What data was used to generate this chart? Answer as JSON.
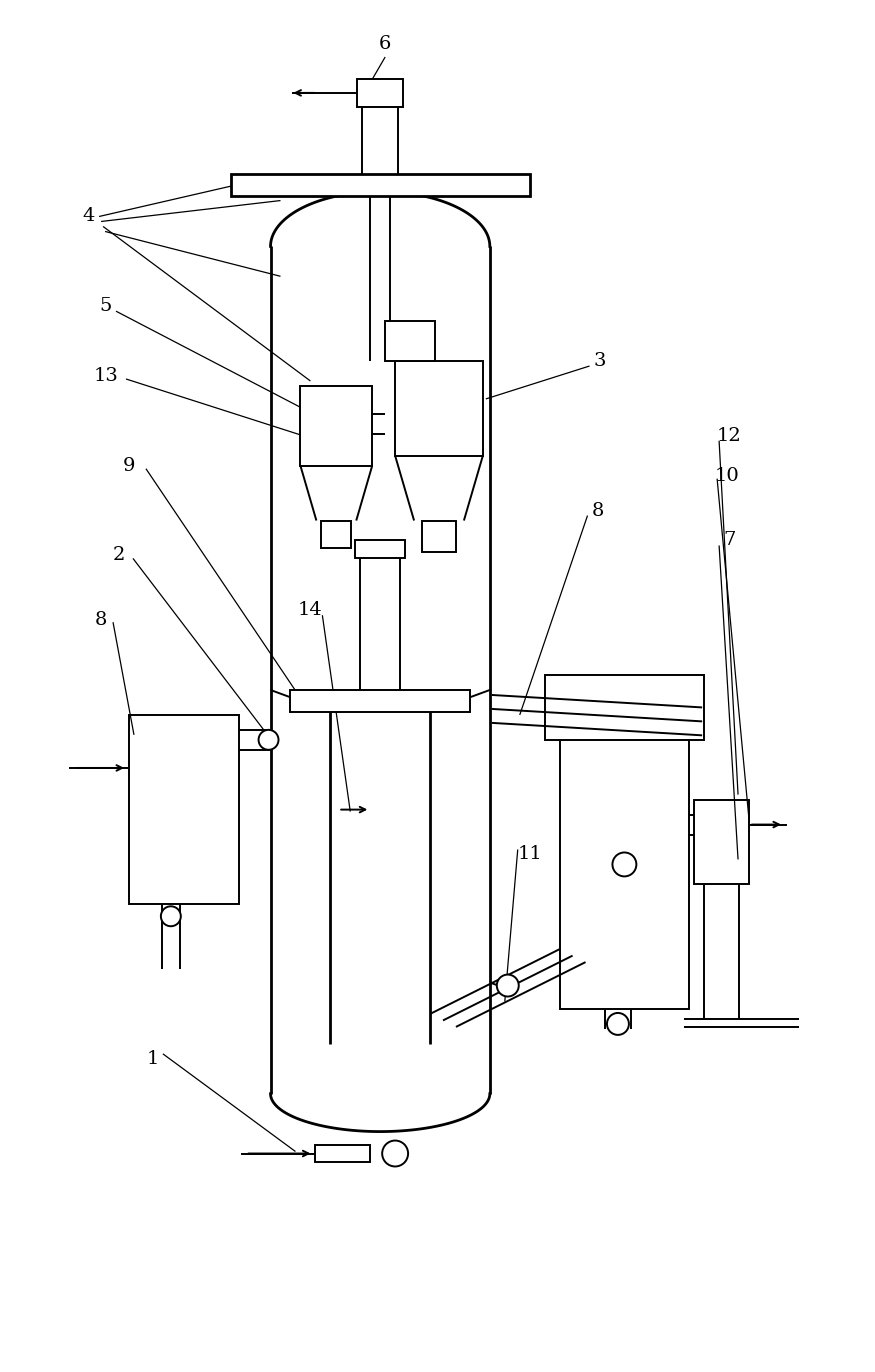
{
  "bg_color": "#ffffff",
  "line_color": "#000000",
  "lw": 1.4,
  "lw_thick": 2.0,
  "lw_thin": 0.9,
  "fig_width": 8.75,
  "fig_height": 13.72,
  "dpi": 100
}
